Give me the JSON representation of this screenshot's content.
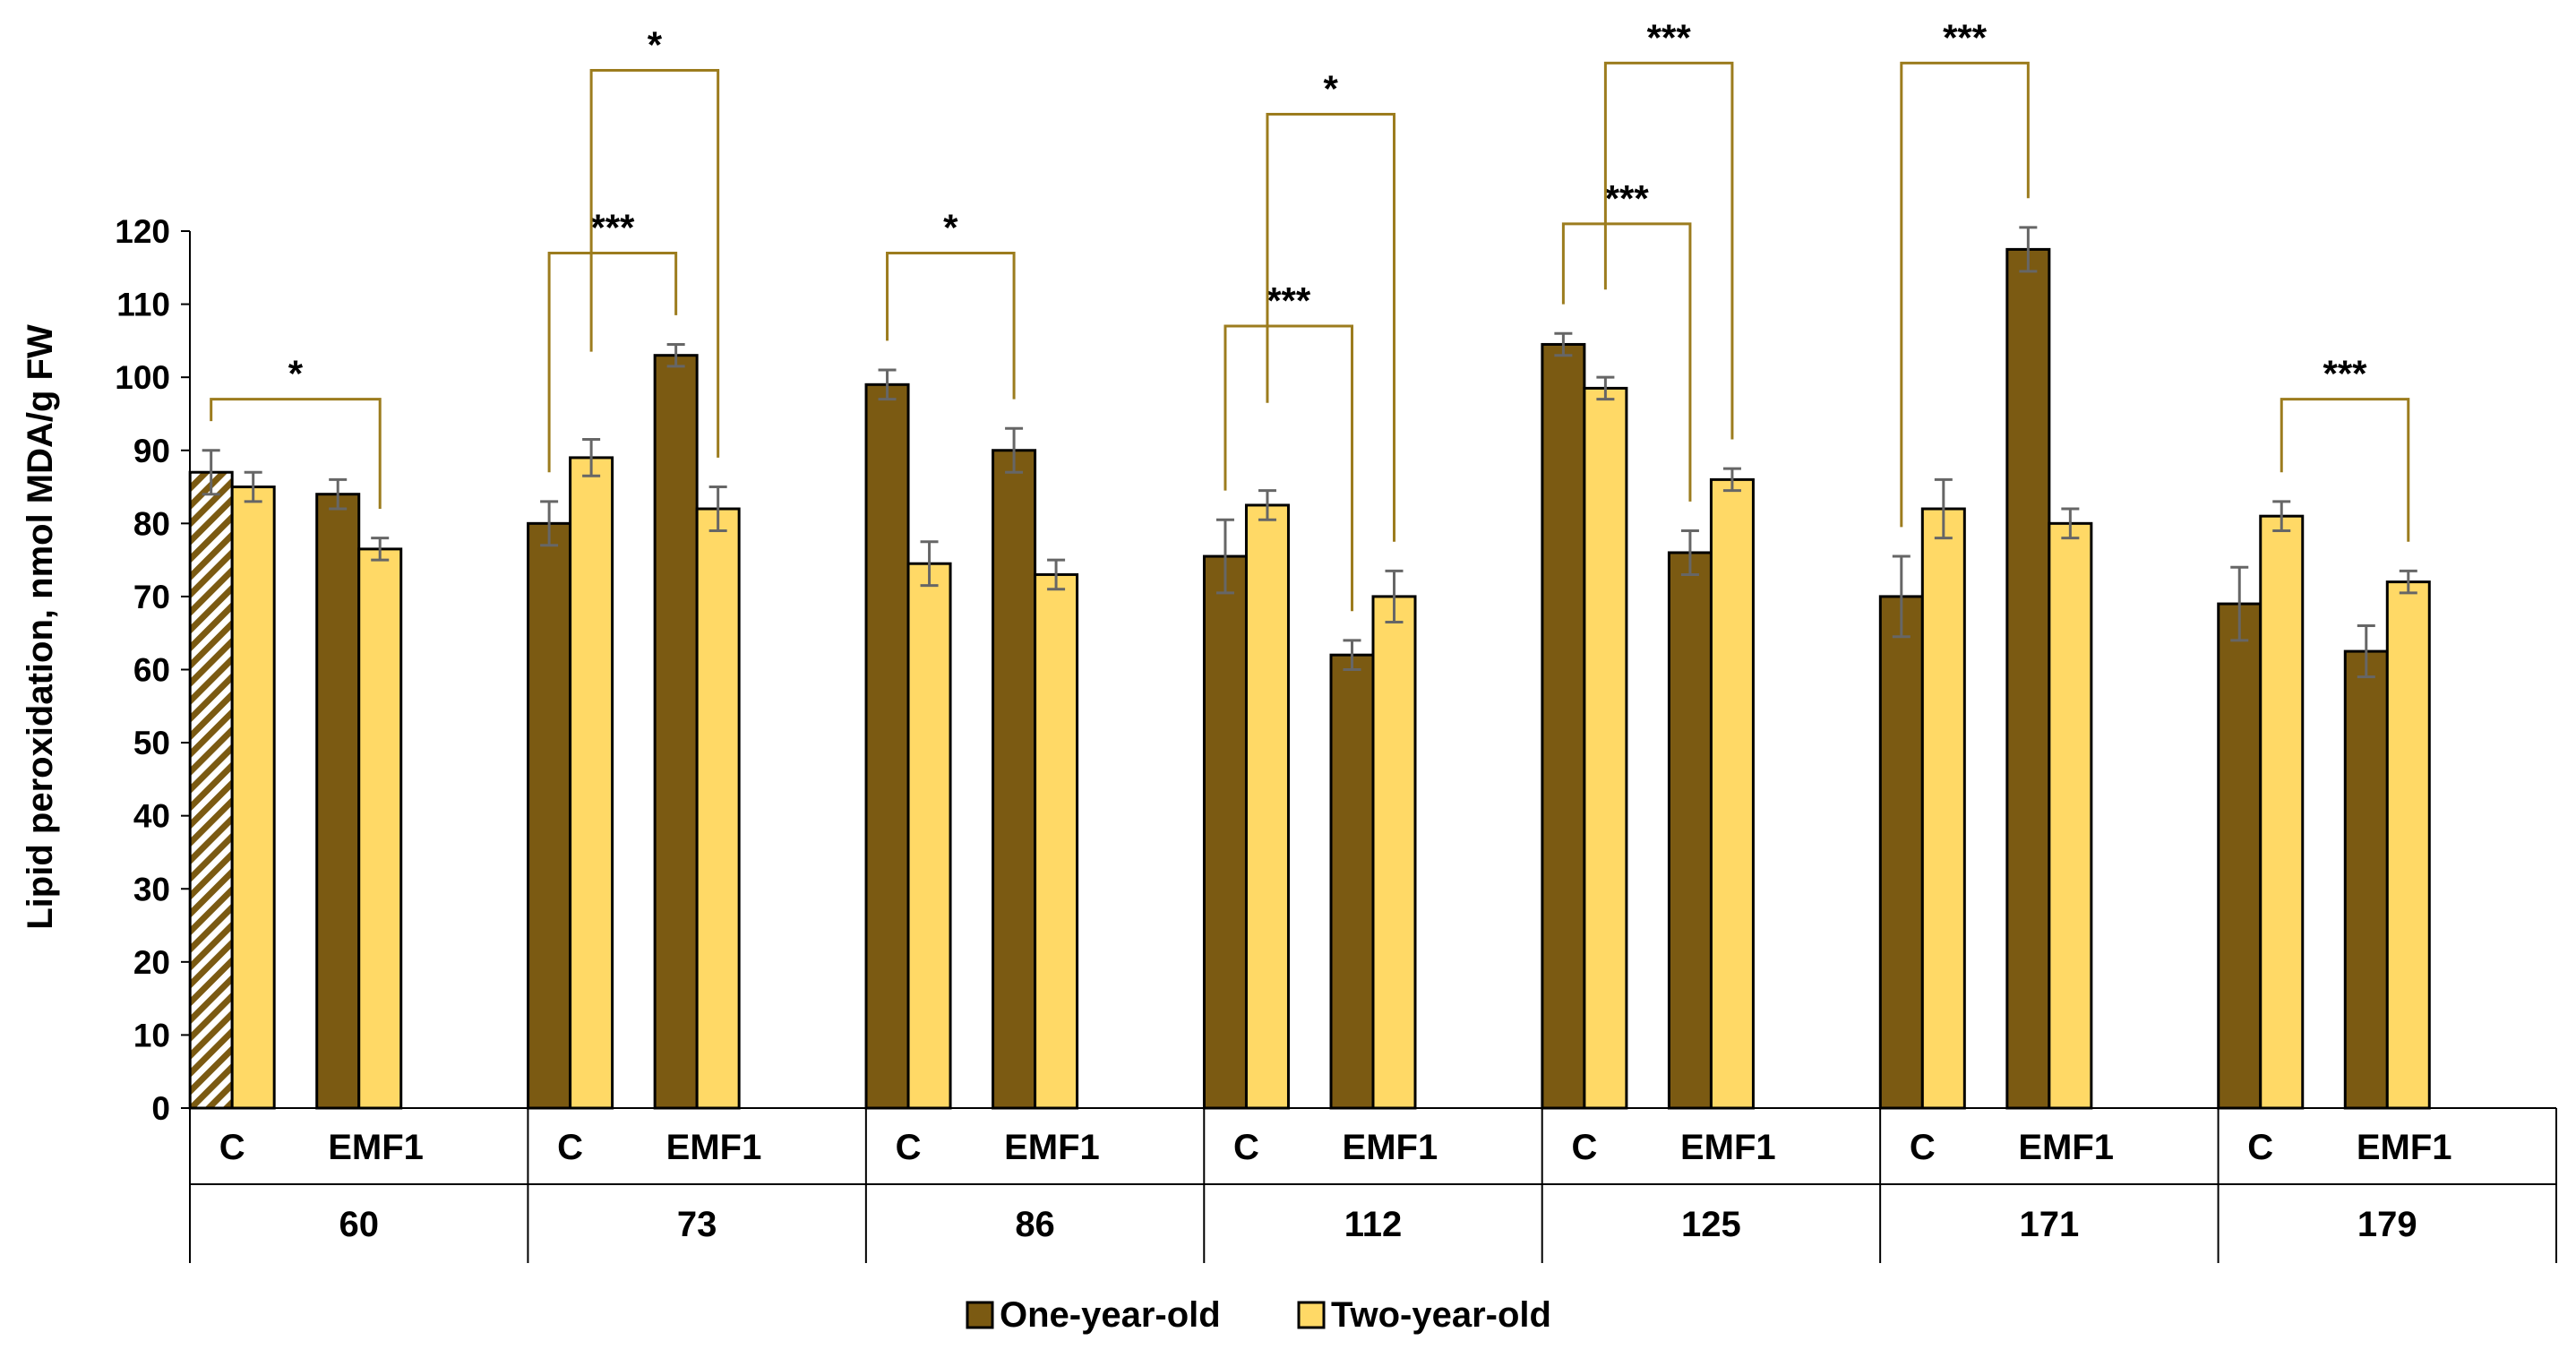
{
  "chart_data": {
    "type": "bar",
    "ylabel": "Lipid peroxidation, nmol MDA/g FW",
    "ylim": [
      0,
      120
    ],
    "yticks": [
      0,
      10,
      20,
      30,
      40,
      50,
      60,
      70,
      80,
      90,
      100,
      110,
      120
    ],
    "groups": [
      "60",
      "73",
      "86",
      "112",
      "125",
      "171",
      "179"
    ],
    "subcategories": [
      "C",
      "EMF1"
    ],
    "series": [
      {
        "name": "One-year-old",
        "color": "#7b5a12",
        "values": [
          [
            87,
            84
          ],
          [
            80,
            103
          ],
          [
            99,
            90
          ],
          [
            75.5,
            62
          ],
          [
            104.5,
            76
          ],
          [
            70,
            117.5
          ],
          [
            69,
            62.5
          ]
        ],
        "errors": [
          [
            3,
            2
          ],
          [
            3,
            1.5
          ],
          [
            2,
            3
          ],
          [
            5,
            2
          ],
          [
            1.5,
            3
          ],
          [
            5.5,
            3
          ],
          [
            5,
            3.5
          ]
        ]
      },
      {
        "name": "Two-year-old",
        "color": "#ffd966",
        "values": [
          [
            85,
            76.5
          ],
          [
            89,
            82
          ],
          [
            74.5,
            73
          ],
          [
            82.5,
            70
          ],
          [
            98.5,
            86
          ],
          [
            82,
            80
          ],
          [
            81,
            72
          ]
        ],
        "errors": [
          [
            2,
            1.5
          ],
          [
            2.5,
            3
          ],
          [
            3,
            2
          ],
          [
            2,
            3.5
          ],
          [
            1.5,
            1.5
          ],
          [
            4,
            2
          ],
          [
            2,
            1.5
          ]
        ]
      }
    ],
    "patterned_bar": {
      "group": "60",
      "sub": "C",
      "series": "One-year-old",
      "pattern": "diagonal-hatch"
    },
    "annotations": [
      {
        "label": "*",
        "from": [
          0,
          "C",
          "One-year-old"
        ],
        "to": [
          0,
          "EMF1",
          "Two-year-old"
        ],
        "top": 97,
        "tier": 0
      },
      {
        "label": "***",
        "from": [
          1,
          "C",
          "One-year-old"
        ],
        "to": [
          1,
          "EMF1",
          "One-year-old"
        ],
        "top": 117,
        "tier": 0
      },
      {
        "label": "*",
        "from": [
          1,
          "C",
          "Two-year-old"
        ],
        "to": [
          1,
          "EMF1",
          "Two-year-old"
        ],
        "top": 142,
        "tier": 1
      },
      {
        "label": "*",
        "from": [
          2,
          "C",
          "One-year-old"
        ],
        "to": [
          2,
          "EMF1",
          "One-year-old"
        ],
        "top": 117,
        "tier": 0
      },
      {
        "label": "***",
        "from": [
          3,
          "C",
          "One-year-old"
        ],
        "to": [
          3,
          "EMF1",
          "One-year-old"
        ],
        "top": 107,
        "tier": 0
      },
      {
        "label": "*",
        "from": [
          3,
          "C",
          "Two-year-old"
        ],
        "to": [
          3,
          "EMF1",
          "Two-year-old"
        ],
        "top": 136,
        "tier": 1
      },
      {
        "label": "***",
        "from": [
          4,
          "C",
          "One-year-old"
        ],
        "to": [
          4,
          "EMF1",
          "One-year-old"
        ],
        "top": 121,
        "tier": 0
      },
      {
        "label": "***",
        "from": [
          4,
          "C",
          "Two-year-old"
        ],
        "to": [
          4,
          "EMF1",
          "Two-year-old"
        ],
        "top": 143,
        "tier": 1
      },
      {
        "label": "***",
        "from": [
          5,
          "C",
          "One-year-old"
        ],
        "to": [
          5,
          "EMF1",
          "One-year-old"
        ],
        "top": 143,
        "tier": 0
      },
      {
        "label": "***",
        "from": [
          6,
          "C",
          "Two-year-old"
        ],
        "to": [
          6,
          "EMF1",
          "Two-year-old"
        ],
        "top": 97,
        "tier": 0
      }
    ],
    "legend": [
      "One-year-old",
      "Two-year-old"
    ],
    "legend_position": "bottom",
    "grid": false
  }
}
